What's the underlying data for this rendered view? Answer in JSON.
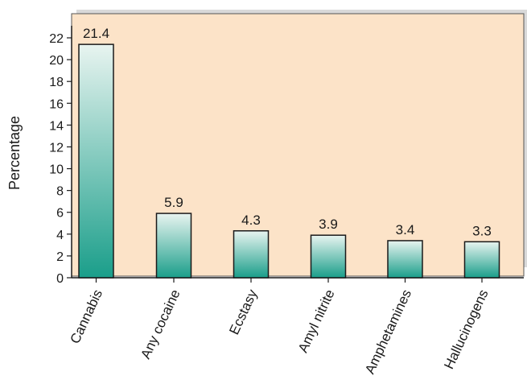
{
  "chart_data": {
    "type": "bar",
    "title": "",
    "xlabel": "",
    "ylabel": "Percentage",
    "categories": [
      "Cannabis",
      "Any cocaine",
      "Ecstasy",
      "Amyl nitrite",
      "Amphetamines",
      "Hallucinogens"
    ],
    "values": [
      21.4,
      5.9,
      4.3,
      3.9,
      3.4,
      3.3
    ],
    "value_labels": [
      "21.4",
      "5.9",
      "4.3",
      "3.9",
      "3.4",
      "3.3"
    ],
    "ylim": [
      0,
      22
    ],
    "yticks": [
      0,
      2,
      4,
      6,
      8,
      10,
      12,
      14,
      16,
      18,
      20,
      22
    ],
    "grid": false,
    "colors": {
      "plot_background": "#fce3c8",
      "bar_top": "#e8f4f0",
      "bar_bottom": "#1a9e8a",
      "bar_stroke": "#1a1a1a",
      "panel_shadow": "#c9c9c9"
    }
  }
}
